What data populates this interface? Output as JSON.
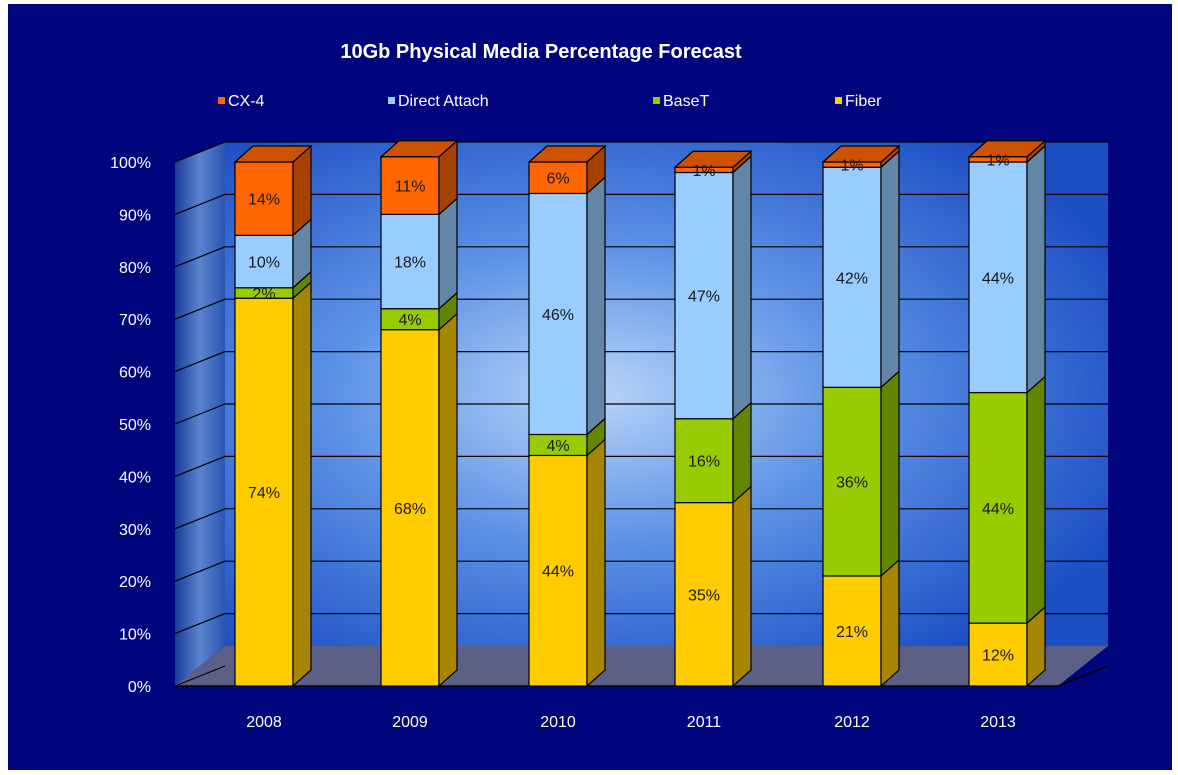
{
  "chart_data": {
    "type": "bar",
    "stacked": true,
    "three_d": true,
    "title": "10Gb Physical Media Percentage Forecast",
    "categories": [
      "2008",
      "2009",
      "2010",
      "2011",
      "2012",
      "2013"
    ],
    "y_ticks": [
      "0%",
      "10%",
      "20%",
      "30%",
      "40%",
      "50%",
      "60%",
      "70%",
      "80%",
      "90%",
      "100%"
    ],
    "ylim": [
      0,
      100
    ],
    "legend_position": "top",
    "series": [
      {
        "name": "Fiber",
        "values": [
          74,
          68,
          44,
          35,
          21,
          12
        ],
        "labels": [
          "74%",
          "68%",
          "44%",
          "35%",
          "21%",
          "12%"
        ],
        "color": "#ffcc00"
      },
      {
        "name": "BaseT",
        "values": [
          2,
          4,
          4,
          16,
          36,
          44
        ],
        "labels": [
          "2%",
          "4%",
          "4%",
          "16%",
          "36%",
          "44%"
        ],
        "color": "#99cc00"
      },
      {
        "name": "Direct Attach",
        "values": [
          10,
          18,
          46,
          47,
          42,
          44
        ],
        "labels": [
          "10%",
          "18%",
          "46%",
          "47%",
          "42%",
          "44%"
        ],
        "color": "#99ccff"
      },
      {
        "name": "CX-4",
        "values": [
          14,
          11,
          6,
          1,
          1,
          1
        ],
        "labels": [
          "14%",
          "11%",
          "6%",
          "1%",
          "1%",
          "1%"
        ],
        "color": "#ff6600"
      }
    ],
    "legend_order": [
      "CX-4",
      "Direct Attach",
      "BaseT",
      "Fiber"
    ],
    "colors": {
      "background": "#00047d",
      "wall_light": "#9bbff5",
      "wall_dark": "#1f5bd0",
      "floor": "#5c5f86",
      "text": "#ffffff",
      "gridline": "#000000"
    }
  }
}
